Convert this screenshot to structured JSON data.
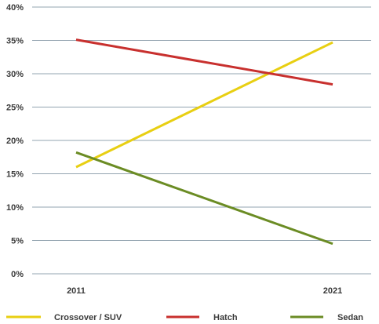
{
  "chart_data": {
    "type": "line",
    "title": "",
    "xlabel": "",
    "ylabel": "",
    "x": [
      "2011",
      "2021"
    ],
    "ylim": [
      0,
      40
    ],
    "y_ticks": [
      0,
      5,
      10,
      15,
      20,
      25,
      30,
      35,
      40
    ],
    "y_tick_format": "{v}%",
    "grid": true,
    "legend_position": "bottom",
    "series": [
      {
        "name": "Crossover / SUV",
        "values": [
          16.0,
          34.7
        ],
        "color": "#e8cf12"
      },
      {
        "name": "Hatch",
        "values": [
          35.1,
          28.4
        ],
        "color": "#c8302e"
      },
      {
        "name": "Sedan",
        "values": [
          18.2,
          4.5
        ],
        "color": "#6b8c24"
      }
    ]
  }
}
